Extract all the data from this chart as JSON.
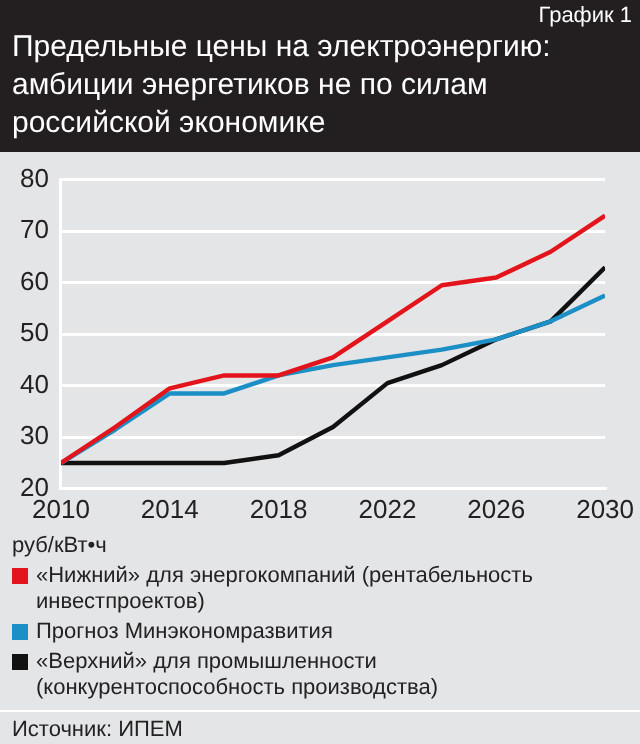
{
  "chart_data": {
    "type": "line",
    "title": "Предельные цены на электроэнергию: амбиции энергетиков не по силам российской экономике",
    "ylabel": "руб/кВт•ч",
    "annotations": [
      "График 1",
      "Источник: ИПЕМ"
    ],
    "x": [
      2010,
      2012,
      2014,
      2016,
      2018,
      2020,
      2022,
      2024,
      2026,
      2028,
      2030
    ],
    "series": [
      {
        "name": "«Нижний» для энергокомпаний (рентабельность инвестпроектов)",
        "color": "#e3141b",
        "values": [
          25,
          32,
          39.5,
          42,
          42,
          45.5,
          52.5,
          59.5,
          61,
          66,
          73
        ]
      },
      {
        "name": "Прогноз Минэкономразвития",
        "color": "#1b8fc6",
        "values": [
          25,
          31.5,
          38.5,
          38.5,
          42,
          44,
          45.5,
          47,
          49,
          52.5,
          57.5
        ]
      },
      {
        "name": "«Верхний» для промышленности (конкурентоспособность производства)",
        "color": "#111111",
        "values": [
          25,
          25,
          25,
          25,
          26.5,
          32,
          40.5,
          44,
          49,
          52.5,
          63
        ]
      }
    ],
    "xlim": [
      2010,
      2030
    ],
    "xticks": [
      2010,
      2014,
      2018,
      2022,
      2026,
      2030
    ],
    "ylim": [
      20,
      80
    ],
    "yticks": [
      20,
      30,
      40,
      50,
      60,
      70,
      80
    ],
    "grid": "y",
    "legend": "bottom",
    "marker": "none",
    "line_style": "solid"
  }
}
